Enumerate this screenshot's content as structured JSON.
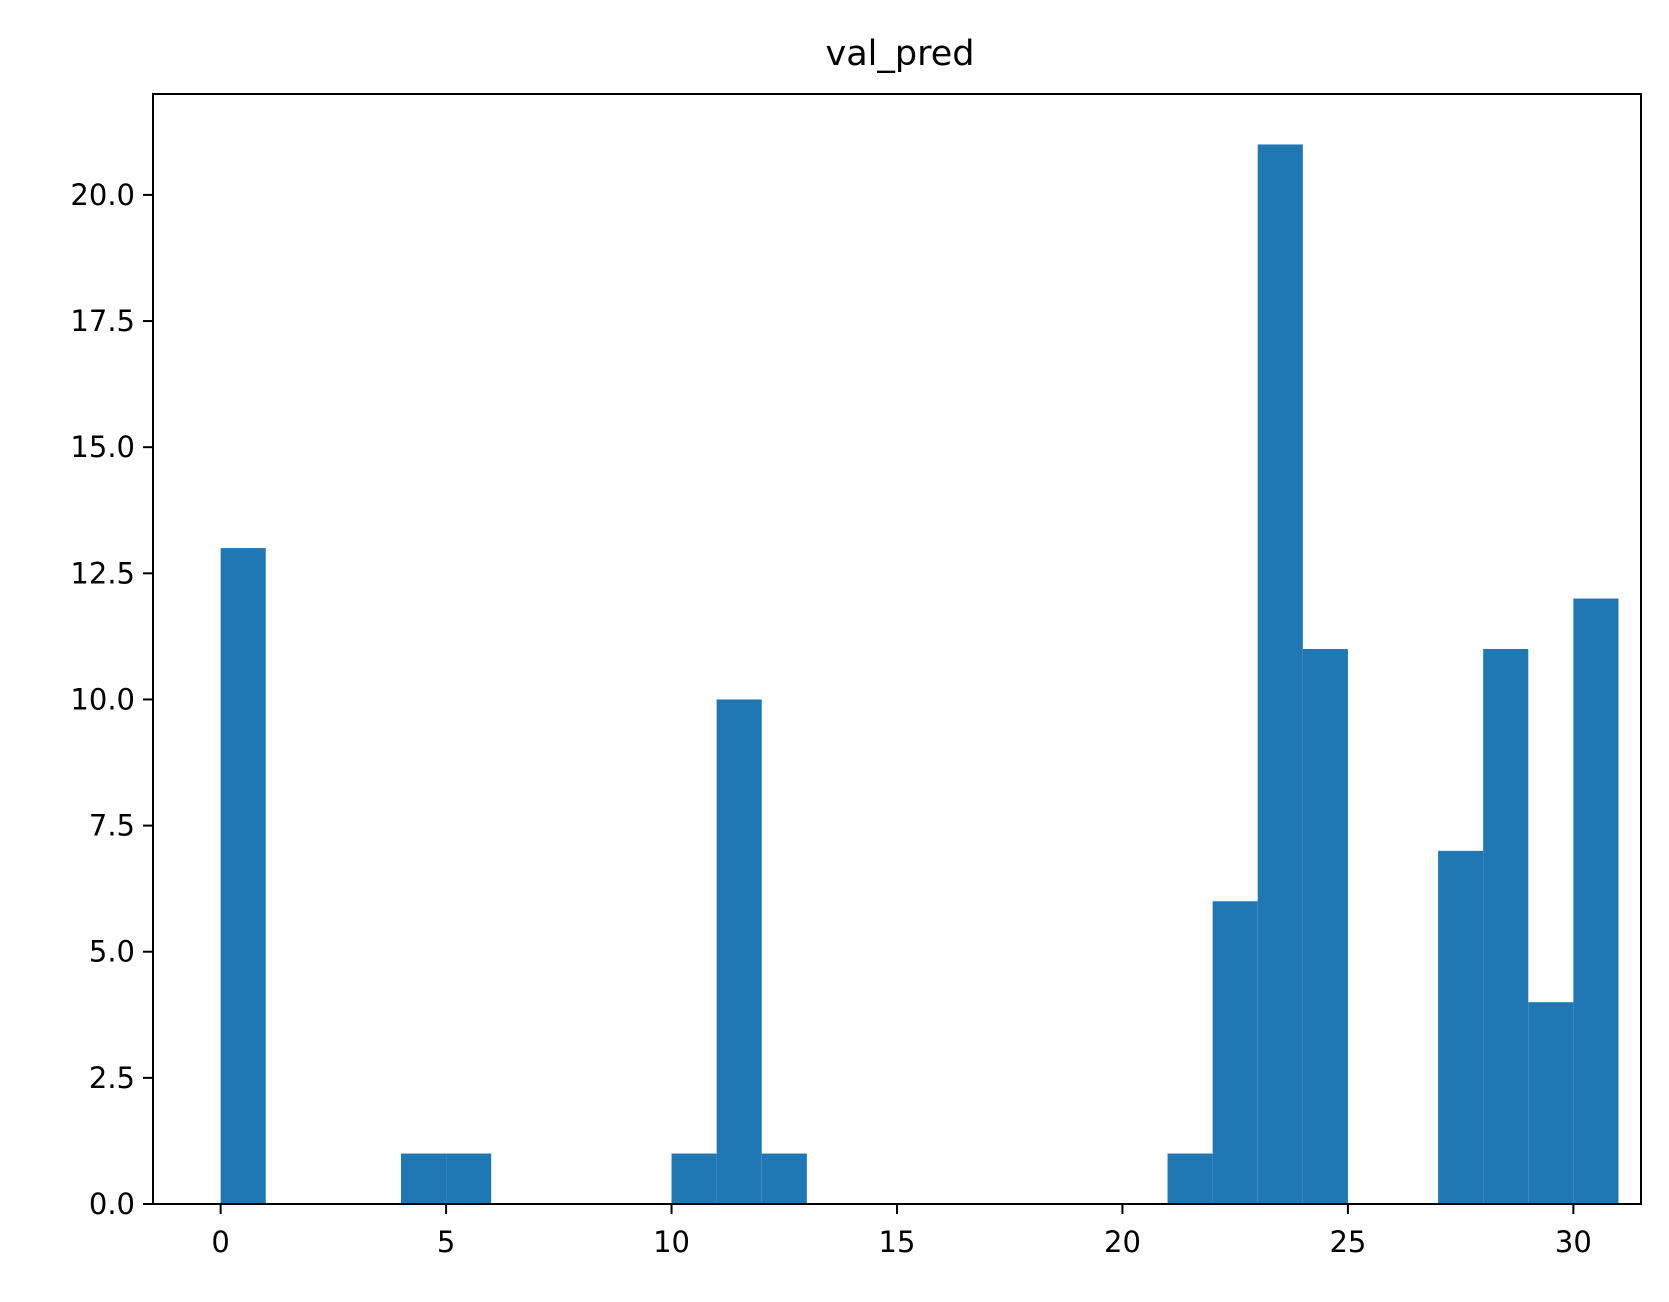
{
  "chart_data": {
    "type": "bar",
    "title": "val_pred",
    "xlabel": "",
    "ylabel": "",
    "bin_start": 0,
    "bin_width": 1.0,
    "values": [
      13,
      0,
      0,
      0,
      1,
      1,
      0,
      0,
      0,
      0,
      1,
      10,
      1,
      0,
      0,
      0,
      0,
      0,
      0,
      0,
      0,
      1,
      6,
      21,
      11,
      0,
      0,
      7,
      11,
      4,
      12
    ],
    "xlim": [
      -1.5,
      31.5
    ],
    "ylim": [
      0,
      22
    ],
    "xticks": [
      0,
      5,
      10,
      15,
      20,
      25,
      30
    ],
    "xtick_labels": [
      "0",
      "5",
      "10",
      "15",
      "20",
      "25",
      "30"
    ],
    "yticks": [
      0,
      2.5,
      5,
      7.5,
      10,
      12.5,
      15,
      17.5,
      20
    ],
    "ytick_labels": [
      "0.0",
      "2.5",
      "5.0",
      "7.5",
      "10.0",
      "12.5",
      "15.0",
      "17.5",
      "20.0"
    ],
    "bar_color": "#1f77b4",
    "grid": false,
    "legend": "none"
  }
}
